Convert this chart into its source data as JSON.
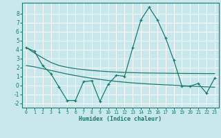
{
  "xlabel": "Humidex (Indice chaleur)",
  "background_color": "#c8e8ec",
  "grid_color": "#ffffff",
  "line_color": "#1a7a6e",
  "x_data": [
    0,
    1,
    2,
    3,
    4,
    5,
    6,
    7,
    8,
    9,
    10,
    11,
    12,
    13,
    14,
    15,
    16,
    17,
    18,
    19,
    20,
    21,
    22,
    23
  ],
  "y_main": [
    4.2,
    3.8,
    2.2,
    1.3,
    -0.2,
    -1.7,
    -1.7,
    0.4,
    0.5,
    -1.8,
    0.1,
    1.1,
    1.0,
    4.2,
    7.3,
    8.7,
    7.3,
    5.3,
    2.8,
    -0.1,
    -0.1,
    0.2,
    -0.9,
    0.8
  ],
  "y_trend1": [
    4.2,
    3.6,
    3.05,
    2.55,
    2.2,
    2.0,
    1.85,
    1.75,
    1.65,
    1.58,
    1.52,
    1.47,
    1.43,
    1.4,
    1.38,
    1.36,
    1.35,
    1.34,
    1.33,
    1.32,
    1.31,
    1.31,
    1.3,
    1.3
  ],
  "y_trend2": [
    2.2,
    2.05,
    1.85,
    1.65,
    1.45,
    1.25,
    1.08,
    0.92,
    0.78,
    0.65,
    0.53,
    0.43,
    0.34,
    0.26,
    0.2,
    0.14,
    0.09,
    0.04,
    0.0,
    -0.05,
    -0.1,
    -0.14,
    -0.18,
    -0.22
  ],
  "xlim": [
    -0.5,
    23.5
  ],
  "ylim": [
    -2.5,
    9.2
  ],
  "yticks": [
    -2,
    -1,
    0,
    1,
    2,
    3,
    4,
    5,
    6,
    7,
    8
  ],
  "xticks": [
    0,
    1,
    2,
    3,
    4,
    5,
    6,
    7,
    8,
    9,
    10,
    11,
    12,
    13,
    14,
    15,
    16,
    17,
    18,
    19,
    20,
    21,
    22,
    23
  ]
}
